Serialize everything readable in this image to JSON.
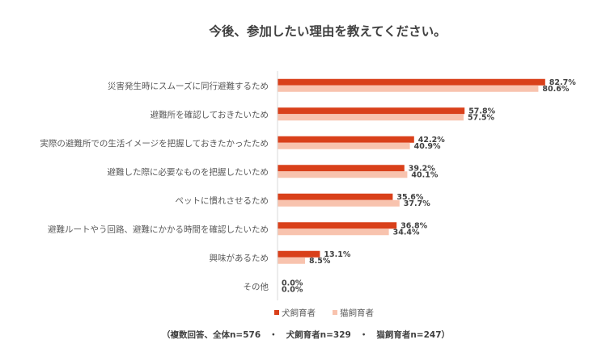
{
  "chart_data": {
    "type": "bar",
    "orientation": "horizontal",
    "title": "今後、参加したい理由を教えてください。",
    "categories": [
      "災害発生時にスムーズに同行避難するため",
      "避難所を確認しておきたいため",
      "実際の避難所での生活イメージを把握しておきたかったため",
      "避難した際に必要なものを把握したいため",
      "ペットに慣れさせるため",
      "避難ルートやう回路、避難にかかる時間を確認したいため",
      "興味があるため",
      "その他"
    ],
    "series": [
      {
        "name": "犬飼育者",
        "color": "#d9401a",
        "values": [
          82.7,
          57.8,
          42.2,
          39.2,
          35.6,
          36.8,
          13.1,
          0.0
        ],
        "labels": [
          "82.7%",
          "57.8%",
          "42.2%",
          "39.2%",
          "35.6%",
          "36.8%",
          "13.1%",
          "0.0%"
        ]
      },
      {
        "name": "猫飼育者",
        "color": "#f8c3ae",
        "values": [
          80.6,
          57.5,
          40.9,
          40.1,
          37.7,
          34.4,
          8.5,
          0.0
        ],
        "labels": [
          "80.6%",
          "57.5%",
          "40.9%",
          "40.1%",
          "37.7%",
          "34.4%",
          "8.5%",
          "0.0%"
        ]
      }
    ],
    "xlim": [
      0,
      100
    ],
    "grid": false,
    "legend_position": "bottom",
    "note": "（複数回答、全体n=576　・　犬飼育者n=329　・　猫飼育者n=247）"
  }
}
